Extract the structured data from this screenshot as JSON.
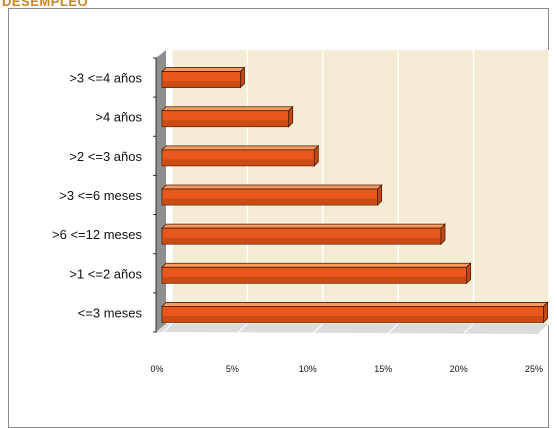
{
  "header": {
    "title_fragment": "DESEMPLEO"
  },
  "chart_data": {
    "type": "bar",
    "orientation": "horizontal",
    "categories": [
      ">3 <=4 años",
      ">4 años",
      ">2 <=3 años",
      ">3 <=6 meses",
      ">6 <=12 meses",
      ">1 <=2 años",
      "<=3 meses"
    ],
    "values": [
      5.2,
      8.4,
      10.1,
      14.3,
      18.5,
      20.2,
      25.3
    ],
    "xlim": [
      0,
      25
    ],
    "x_ticks": [
      "0%",
      "5%",
      "10%",
      "15%",
      "20%",
      "25%"
    ],
    "grid": true,
    "legend": "none",
    "colors": {
      "bar": "#e8581c",
      "bar_top": "#f59a5f",
      "bar_dark": "#4a1b06",
      "plot_bg": "#f4ecd4",
      "floor": "#dcdcdc",
      "wall": "#8f8f8f"
    }
  }
}
